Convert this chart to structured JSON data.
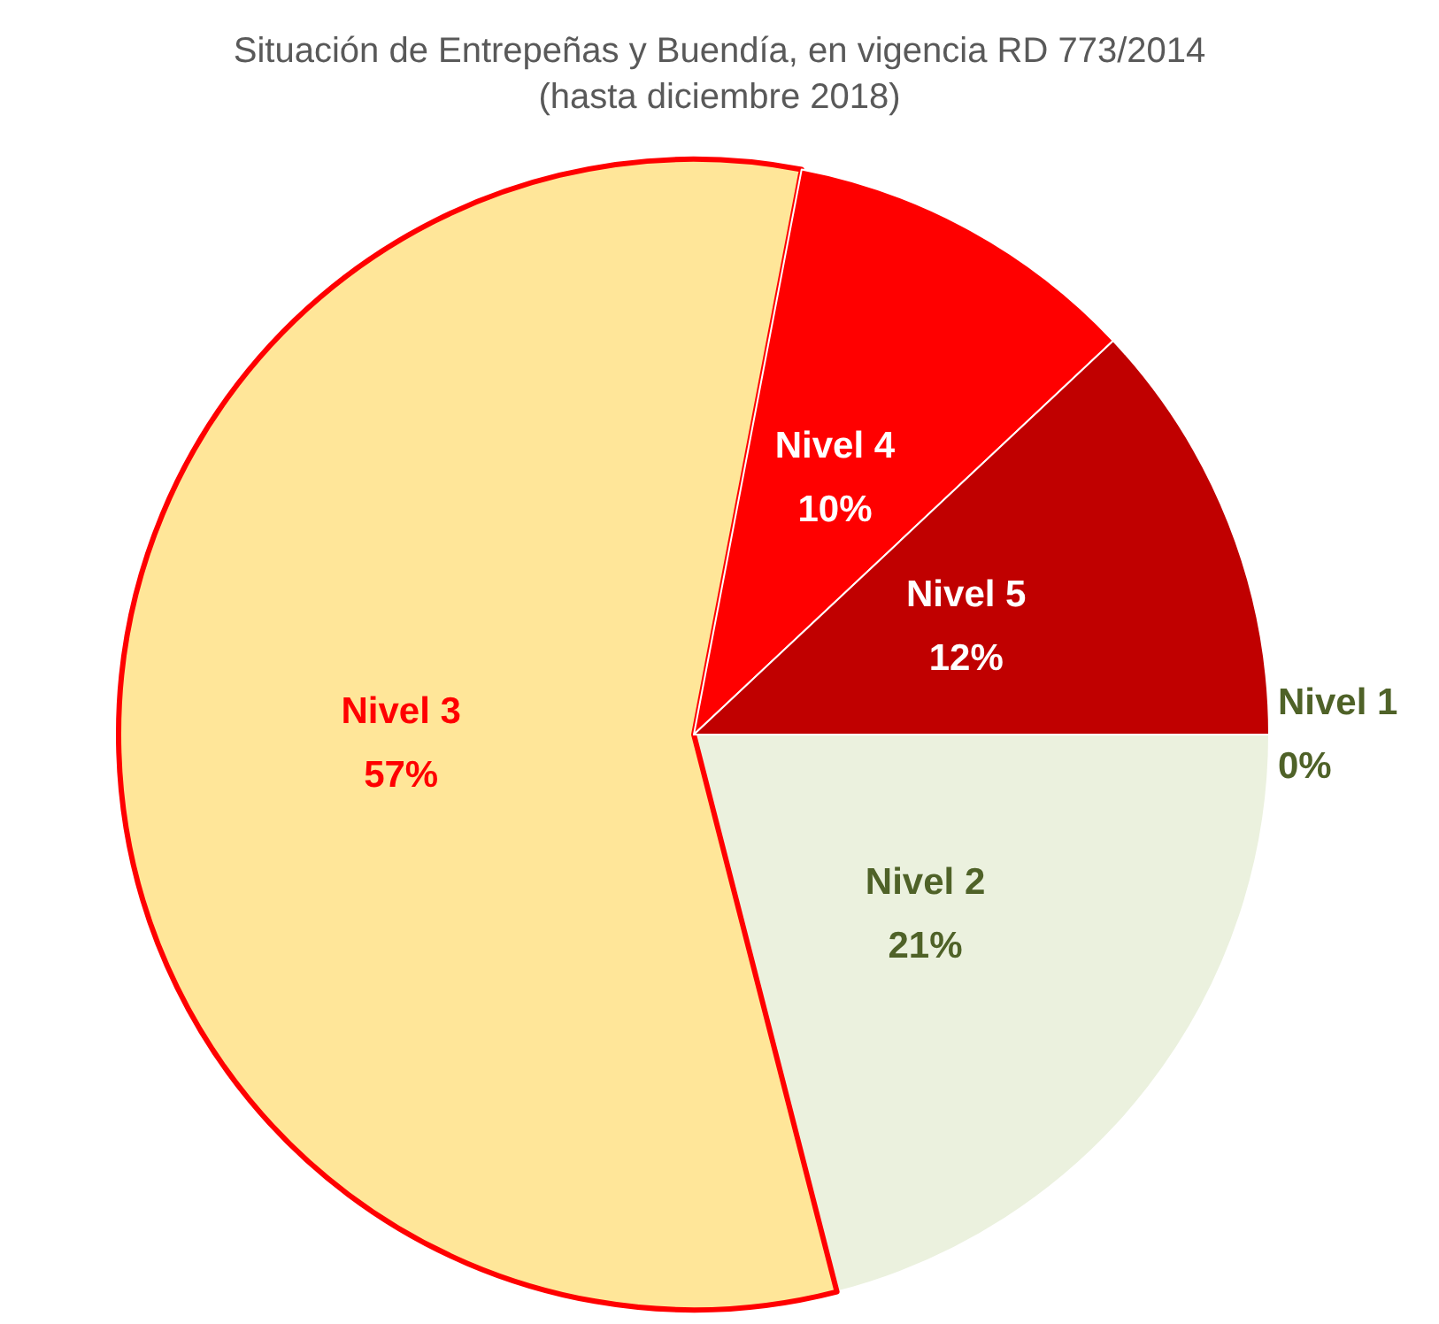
{
  "chart_data": {
    "type": "pie",
    "title": "Situación de Entrepeñas y Buendía, en vigencia RD 773/2014",
    "subtitle": "(hasta diciembre 2018)",
    "categories": [
      "Nivel 1",
      "Nivel 2",
      "Nivel 3",
      "Nivel 4",
      "Nivel 5"
    ],
    "values": [
      0,
      21,
      57,
      10,
      12
    ],
    "value_labels": [
      "0%",
      "21%",
      "57%",
      "10%",
      "12%"
    ],
    "colors": [
      "#4f6228",
      "#ebf1de",
      "#ffe699",
      "#ff0000",
      "#c00000"
    ],
    "legend": false
  }
}
